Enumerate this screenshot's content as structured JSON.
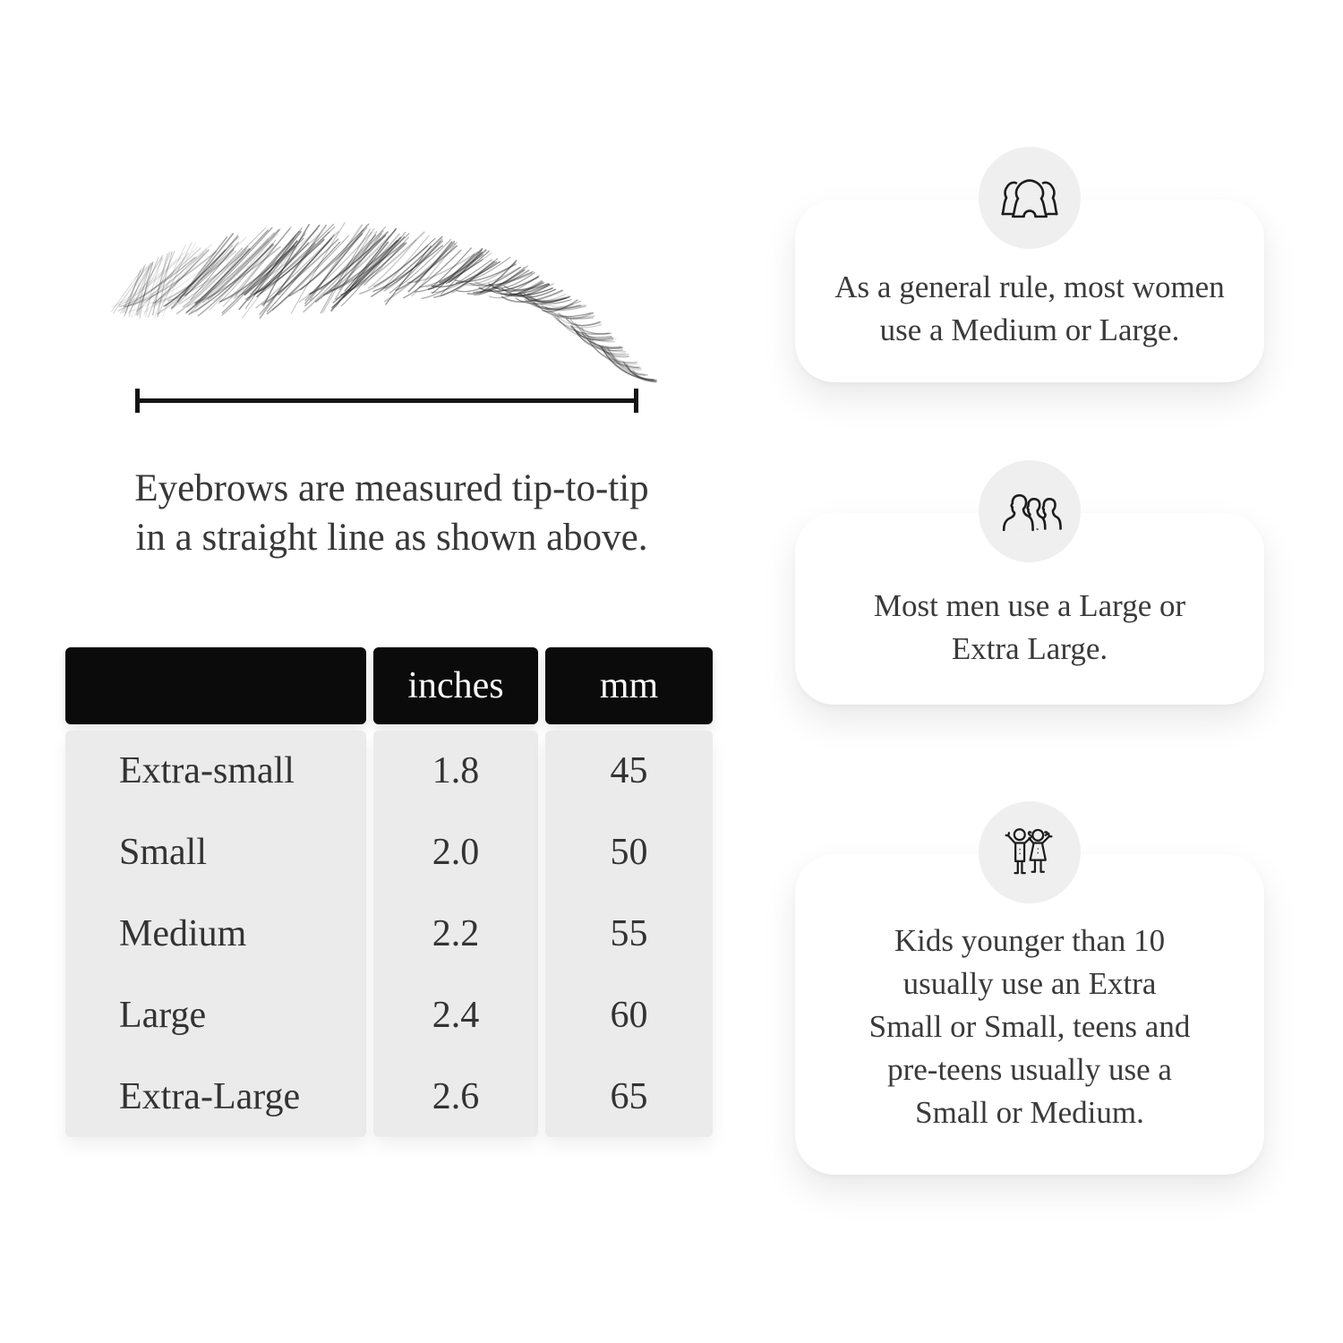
{
  "measurement_section": {
    "caption_lines": [
      "Eyebrows are measured tip-to-tip",
      "in a straight line as shown above."
    ]
  },
  "size_table": {
    "headers": [
      "",
      "inches",
      "mm"
    ],
    "rows": [
      {
        "label": "Extra-small",
        "inches": "1.8",
        "mm": "45"
      },
      {
        "label": "Small",
        "inches": "2.0",
        "mm": "50"
      },
      {
        "label": "Medium",
        "inches": "2.2",
        "mm": "55"
      },
      {
        "label": "Large",
        "inches": "2.4",
        "mm": "60"
      },
      {
        "label": "Extra-Large",
        "inches": "2.6",
        "mm": "65"
      }
    ],
    "colors": {
      "header_bg": "#0b0b0b",
      "header_text": "#fafafa",
      "body_bg": "#ebebeb"
    }
  },
  "info_cards": [
    {
      "icon": "women-group-icon",
      "lines": [
        "As a general rule, most women",
        "use a Medium or Large."
      ]
    },
    {
      "icon": "men-group-icon",
      "lines": [
        "Most men use a Large or",
        "Extra Large."
      ]
    },
    {
      "icon": "kids-icon",
      "lines": [
        "Kids younger than 10",
        "usually use an Extra",
        "Small or Small, teens and",
        "pre-teens usually use a",
        "Small or Medium."
      ]
    }
  ],
  "colors": {
    "text": "#3a3a3a",
    "line": "#141414",
    "icon_circle": "#f0efef",
    "background": "#ffffff"
  }
}
